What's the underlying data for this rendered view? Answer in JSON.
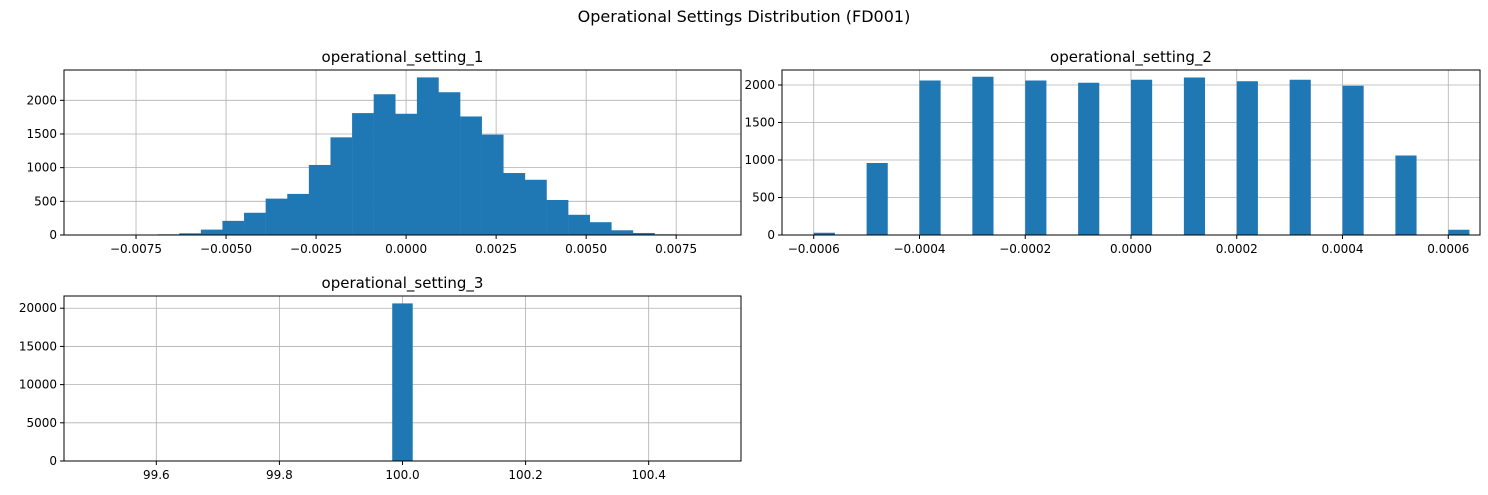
{
  "figure": {
    "suptitle": "Operational Settings Distribution (FD001)"
  },
  "colors": {
    "bar": "#1f77b4",
    "grid": "#b0b0b0",
    "axis": "#000000",
    "background": "#ffffff"
  },
  "chart_data": [
    {
      "type": "bar",
      "subtype": "histogram",
      "title": "operational_setting_1",
      "xlabel": "",
      "ylabel": "",
      "xlim": [
        -0.0095,
        0.0093
      ],
      "ylim": [
        0,
        2450
      ],
      "grid": true,
      "bin_width": 0.000606,
      "bin_lefts": [
        -0.0069,
        -0.0063,
        -0.0057,
        -0.0051,
        -0.0045,
        -0.0039,
        -0.0033,
        -0.0027,
        -0.0021,
        -0.0015,
        -0.0009,
        -0.0003,
        0.0003,
        0.0009,
        0.0015,
        0.0021,
        0.0027,
        0.0033,
        0.0039,
        0.0045,
        0.0051,
        0.0057,
        0.0063,
        0.0069
      ],
      "values": [
        10,
        25,
        80,
        210,
        330,
        540,
        610,
        1040,
        1450,
        1810,
        2090,
        1800,
        2340,
        2120,
        1760,
        1490,
        920,
        820,
        520,
        300,
        190,
        70,
        30,
        10
      ],
      "xticks": [
        -0.0075,
        -0.005,
        -0.0025,
        0.0,
        0.0025,
        0.005,
        0.0075
      ],
      "xtick_labels": [
        "−0.0075",
        "−0.0050",
        "−0.0025",
        "0.0000",
        "0.0025",
        "0.0050",
        "0.0075"
      ],
      "yticks": [
        0,
        500,
        1000,
        1500,
        2000
      ],
      "ytick_labels": [
        "0",
        "500",
        "1000",
        "1500",
        "2000"
      ]
    },
    {
      "type": "bar",
      "subtype": "histogram",
      "title": "operational_setting_2",
      "xlabel": "",
      "ylabel": "",
      "xlim": [
        -0.00066,
        0.00066
      ],
      "ylim": [
        0,
        2200
      ],
      "grid": true,
      "bin_width": 4e-05,
      "bin_lefts": [
        -0.0006,
        -0.0005,
        -0.0004,
        -0.0003,
        -0.0002,
        -0.0001,
        0.0,
        0.0001,
        0.0002,
        0.0003,
        0.0004,
        0.0005,
        0.0006
      ],
      "values": [
        30,
        960,
        2060,
        2110,
        2060,
        2030,
        2070,
        2100,
        2050,
        2070,
        1990,
        1060,
        70
      ],
      "xticks": [
        -0.0006,
        -0.0004,
        -0.0002,
        0.0,
        0.0002,
        0.0004,
        0.0006
      ],
      "xtick_labels": [
        "−0.0006",
        "−0.0004",
        "−0.0002",
        "0.0000",
        "0.0002",
        "0.0004",
        "0.0006"
      ],
      "yticks": [
        0,
        500,
        1000,
        1500,
        2000
      ],
      "ytick_labels": [
        "0",
        "500",
        "1000",
        "1500",
        "2000"
      ]
    },
    {
      "type": "bar",
      "subtype": "histogram",
      "title": "operational_setting_3",
      "xlabel": "",
      "ylabel": "",
      "xlim": [
        99.45,
        100.55
      ],
      "ylim": [
        0,
        21600
      ],
      "grid": true,
      "bin_width": 0.0333,
      "bin_lefts": [
        99.9833
      ],
      "values": [
        20631
      ],
      "xticks": [
        99.6,
        99.8,
        100.0,
        100.2,
        100.4
      ],
      "xtick_labels": [
        "99.6",
        "99.8",
        "100.0",
        "100.2",
        "100.4"
      ],
      "yticks": [
        0,
        5000,
        10000,
        15000,
        20000
      ],
      "ytick_labels": [
        "0",
        "5000",
        "10000",
        "15000",
        "20000"
      ]
    }
  ]
}
